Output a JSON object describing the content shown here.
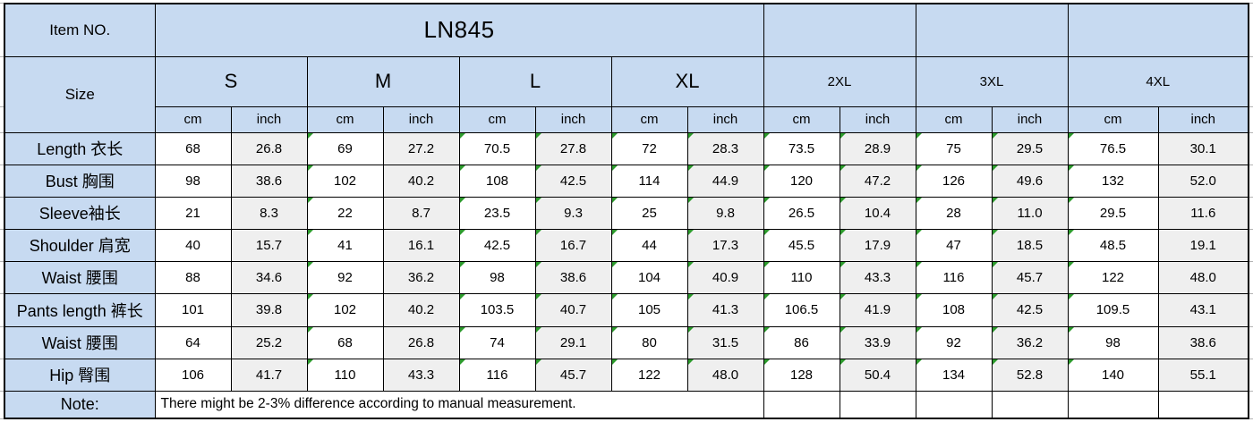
{
  "table": {
    "item_no_label": "Item NO.",
    "item_no_value": "LN845",
    "size_label": "Size",
    "size_groups": [
      "S",
      "M",
      "L",
      "XL",
      "2XL",
      "3XL",
      "4XL"
    ],
    "unit_cm": "cm",
    "unit_inch": "inch",
    "columns": [
      "S cm",
      "S inch",
      "M cm",
      "M inch",
      "L cm",
      "L inch",
      "XL cm",
      "XL inch",
      "2XL cm",
      "2XL inch",
      "3XL cm",
      "3XL inch",
      "4XL cm",
      "4XL inch"
    ],
    "rows": [
      {
        "label": "Length 衣长",
        "values": [
          "68",
          "26.8",
          "69",
          "27.2",
          "70.5",
          "27.8",
          "72",
          "28.3",
          "73.5",
          "28.9",
          "75",
          "29.5",
          "76.5",
          "30.1"
        ]
      },
      {
        "label": "Bust 胸围",
        "values": [
          "98",
          "38.6",
          "102",
          "40.2",
          "108",
          "42.5",
          "114",
          "44.9",
          "120",
          "47.2",
          "126",
          "49.6",
          "132",
          "52.0"
        ]
      },
      {
        "label": "Sleeve袖长",
        "values": [
          "21",
          "8.3",
          "22",
          "8.7",
          "23.5",
          "9.3",
          "25",
          "9.8",
          "26.5",
          "10.4",
          "28",
          "11.0",
          "29.5",
          "11.6"
        ]
      },
      {
        "label": "Shoulder 肩宽",
        "values": [
          "40",
          "15.7",
          "41",
          "16.1",
          "42.5",
          "16.7",
          "44",
          "17.3",
          "45.5",
          "17.9",
          "47",
          "18.5",
          "48.5",
          "19.1"
        ]
      },
      {
        "label": "Waist 腰围",
        "values": [
          "88",
          "34.6",
          "92",
          "36.2",
          "98",
          "38.6",
          "104",
          "40.9",
          "110",
          "43.3",
          "116",
          "45.7",
          "122",
          "48.0"
        ]
      },
      {
        "label": "Pants length 裤长",
        "values": [
          "101",
          "39.8",
          "102",
          "40.2",
          "103.5",
          "40.7",
          "105",
          "41.3",
          "106.5",
          "41.9",
          "108",
          "42.5",
          "109.5",
          "43.1"
        ]
      },
      {
        "label": "Waist 腰围",
        "values": [
          "64",
          "25.2",
          "68",
          "26.8",
          "74",
          "29.1",
          "80",
          "31.5",
          "86",
          "33.9",
          "92",
          "36.2",
          "98",
          "38.6"
        ]
      },
      {
        "label": "Hip 臀围",
        "values": [
          "106",
          "41.7",
          "110",
          "43.3",
          "116",
          "45.7",
          "122",
          "48.0",
          "128",
          "50.4",
          "134",
          "52.8",
          "140",
          "55.1"
        ]
      }
    ],
    "note_label": "Note:",
    "note_text": "There might be 2-3% difference according to manual measurement."
  },
  "flags": {
    "triangle_columns": [
      false,
      false,
      true,
      false,
      true,
      true,
      true,
      true,
      true,
      true,
      true,
      true,
      true,
      false
    ]
  },
  "colors": {
    "header_blue": "#C7DAF1",
    "inch_gray": "#EFEFEF",
    "triangle_green": "#2D9B2D",
    "border_black": "#000000"
  }
}
